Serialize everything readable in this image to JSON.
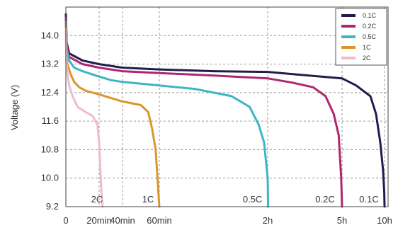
{
  "chart_data": {
    "type": "line",
    "ylabel": "Voltage (V)",
    "xlabel": "",
    "ylim": [
      9.2,
      14.8
    ],
    "yticks": [
      9.2,
      10.0,
      10.8,
      11.6,
      12.4,
      13.2,
      14.0
    ],
    "ytick_labels": [
      "9.2",
      "10.0",
      "10.8",
      "11.6",
      "12.4",
      "13.2",
      "14.0"
    ],
    "xticks": [
      {
        "value": 0,
        "label": "0"
      },
      {
        "value": 20,
        "label": "20min"
      },
      {
        "value": 40,
        "label": "40min"
      },
      {
        "value": 60,
        "label": "60min"
      },
      {
        "value": 120,
        "label": "2h"
      },
      {
        "value": 300,
        "label": "5h"
      },
      {
        "value": 600,
        "label": "10h"
      }
    ],
    "x_unit": "minutes",
    "x_scale": "piecewise",
    "grid": true,
    "legend_position": "top-right",
    "series": [
      {
        "name": "0.1C",
        "label": "0.1C",
        "color": "#1f1d4f",
        "points": [
          [
            0,
            14.6
          ],
          [
            0.5,
            13.8
          ],
          [
            2,
            13.5
          ],
          [
            10,
            13.3
          ],
          [
            20,
            13.2
          ],
          [
            40,
            13.1
          ],
          [
            60,
            13.05
          ],
          [
            90,
            13.0
          ],
          [
            120,
            12.98
          ],
          [
            200,
            12.9
          ],
          [
            300,
            12.8
          ],
          [
            400,
            12.6
          ],
          [
            500,
            12.3
          ],
          [
            540,
            11.8
          ],
          [
            570,
            11.0
          ],
          [
            590,
            10.2
          ],
          [
            598,
            9.6
          ],
          [
            600,
            9.2
          ]
        ]
      },
      {
        "name": "0.2C",
        "label": "0.2C",
        "color": "#b0266f",
        "points": [
          [
            0,
            14.5
          ],
          [
            0.5,
            13.7
          ],
          [
            2,
            13.4
          ],
          [
            10,
            13.2
          ],
          [
            20,
            13.1
          ],
          [
            40,
            13.0
          ],
          [
            60,
            12.95
          ],
          [
            90,
            12.88
          ],
          [
            120,
            12.8
          ],
          [
            180,
            12.68
          ],
          [
            230,
            12.55
          ],
          [
            260,
            12.3
          ],
          [
            280,
            11.8
          ],
          [
            292,
            11.2
          ],
          [
            298,
            10.0
          ],
          [
            300,
            9.2
          ]
        ]
      },
      {
        "name": "0.5C",
        "label": "0.5C",
        "color": "#3bb6c6",
        "points": [
          [
            0,
            14.4
          ],
          [
            0.5,
            13.6
          ],
          [
            2,
            13.3
          ],
          [
            5,
            13.1
          ],
          [
            10,
            13.0
          ],
          [
            20,
            12.85
          ],
          [
            30,
            12.75
          ],
          [
            40,
            12.7
          ],
          [
            60,
            12.6
          ],
          [
            80,
            12.5
          ],
          [
            100,
            12.3
          ],
          [
            110,
            12.0
          ],
          [
            115,
            11.5
          ],
          [
            118,
            11.0
          ],
          [
            120,
            10.0
          ],
          [
            121,
            9.2
          ]
        ]
      },
      {
        "name": "1C",
        "label": "1C",
        "color": "#d9962b",
        "points": [
          [
            0,
            14.3
          ],
          [
            0.3,
            13.5
          ],
          [
            1,
            13.2
          ],
          [
            3,
            12.9
          ],
          [
            5,
            12.7
          ],
          [
            8,
            12.55
          ],
          [
            12,
            12.45
          ],
          [
            20,
            12.35
          ],
          [
            30,
            12.25
          ],
          [
            40,
            12.15
          ],
          [
            50,
            12.05
          ],
          [
            54,
            11.85
          ],
          [
            56,
            11.4
          ],
          [
            58,
            10.8
          ],
          [
            59,
            10.0
          ],
          [
            60,
            9.2
          ]
        ]
      },
      {
        "name": "2C",
        "label": "2C",
        "color": "#eebcc8",
        "points": [
          [
            0,
            14.2
          ],
          [
            0.3,
            13.3
          ],
          [
            1,
            12.9
          ],
          [
            2,
            12.6
          ],
          [
            4,
            12.3
          ],
          [
            7,
            12.0
          ],
          [
            12,
            11.85
          ],
          [
            16,
            11.75
          ],
          [
            19,
            11.5
          ],
          [
            20,
            11.0
          ],
          [
            21,
            10.2
          ],
          [
            22,
            9.6
          ],
          [
            23,
            9.2
          ]
        ]
      }
    ]
  },
  "colors": {
    "grid": "#9a9a9a",
    "axis": "#444444",
    "background": "#ffffff"
  }
}
